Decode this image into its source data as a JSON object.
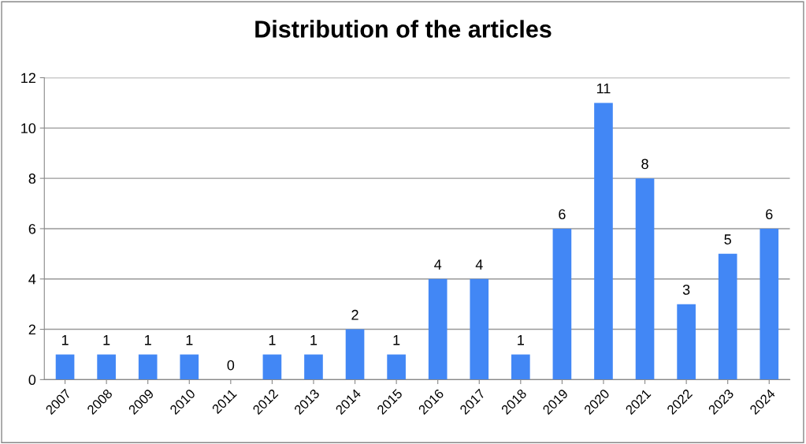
{
  "chart_data": {
    "type": "bar",
    "title": "Distribution of the articles",
    "categories": [
      "2007",
      "2008",
      "2009",
      "2010",
      "2011",
      "2012",
      "2013",
      "2014",
      "2015",
      "2016",
      "2017",
      "2018",
      "2019",
      "2020",
      "2021",
      "2022",
      "2023",
      "2024"
    ],
    "series": [
      {
        "color": "#4287f5",
        "values": [
          1,
          1,
          1,
          1,
          0,
          1,
          1,
          2,
          1,
          4,
          4,
          1,
          6,
          11,
          8,
          3,
          5,
          6
        ]
      }
    ],
    "ylim": [
      0,
      12
    ],
    "yticks": [
      0,
      2,
      4,
      6,
      8,
      10,
      12
    ],
    "grid": "y",
    "data_labels": true
  }
}
